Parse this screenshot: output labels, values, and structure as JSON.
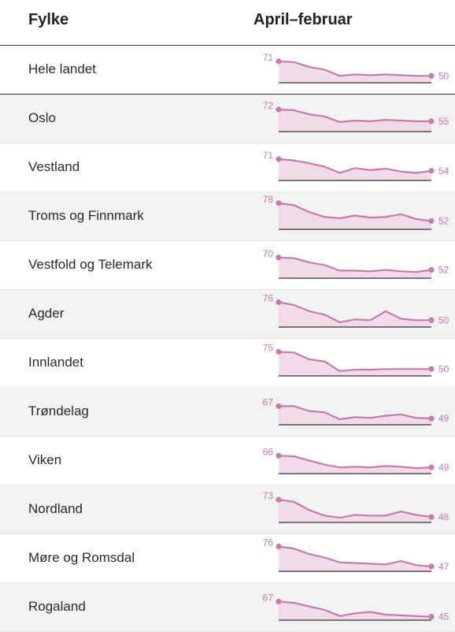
{
  "header": {
    "col1": "Fylke",
    "col2": "April–februar"
  },
  "colors": {
    "line": "#c77aac",
    "fill": "#f1dbe8",
    "baseline": "#333333"
  },
  "chart_data": {
    "type": "table",
    "columns": [
      "Fylke",
      "April–februar"
    ],
    "points_per_row": 11,
    "rows": [
      {
        "label": "Hele landet",
        "start": "71",
        "end": "50",
        "values": [
          71,
          70,
          63,
          59,
          50,
          52,
          51,
          52,
          51,
          50,
          50
        ]
      },
      {
        "label": "Oslo",
        "start": "72",
        "end": "55",
        "values": [
          72,
          71,
          65,
          62,
          54,
          56,
          55,
          57,
          56,
          55,
          55
        ]
      },
      {
        "label": "Vestland",
        "start": "71",
        "end": "54",
        "values": [
          71,
          69,
          65,
          60,
          51,
          58,
          55,
          57,
          53,
          51,
          54
        ]
      },
      {
        "label": "Troms og Finnmark",
        "start": "78",
        "end": "52",
        "values": [
          78,
          75,
          65,
          58,
          56,
          60,
          57,
          58,
          62,
          55,
          52
        ]
      },
      {
        "label": "Vestfold og Telemark",
        "start": "70",
        "end": "52",
        "values": [
          70,
          69,
          63,
          59,
          51,
          51,
          50,
          52,
          50,
          49,
          52
        ]
      },
      {
        "label": "Agder",
        "start": "76",
        "end": "50",
        "values": [
          76,
          72,
          63,
          58,
          47,
          51,
          50,
          63,
          52,
          50,
          50
        ]
      },
      {
        "label": "Innlandet",
        "start": "75",
        "end": "50",
        "values": [
          75,
          74,
          64,
          61,
          47,
          49,
          49,
          50,
          50,
          50,
          50
        ]
      },
      {
        "label": "Trøndelag",
        "start": "67",
        "end": "49",
        "values": [
          67,
          67,
          60,
          58,
          48,
          51,
          50,
          53,
          55,
          50,
          49
        ]
      },
      {
        "label": "Viken",
        "start": "66",
        "end": "49",
        "values": [
          66,
          65,
          59,
          53,
          49,
          50,
          49,
          51,
          50,
          48,
          49
        ]
      },
      {
        "label": "Nordland",
        "start": "73",
        "end": "48",
        "values": [
          73,
          70,
          58,
          50,
          47,
          51,
          50,
          50,
          56,
          51,
          48
        ]
      },
      {
        "label": "Møre og Romsdal",
        "start": "76",
        "end": "47",
        "values": [
          76,
          73,
          65,
          60,
          53,
          52,
          51,
          50,
          55,
          49,
          47
        ]
      },
      {
        "label": "Rogaland",
        "start": "67",
        "end": "45",
        "values": [
          67,
          65,
          60,
          55,
          46,
          50,
          52,
          48,
          47,
          46,
          45
        ]
      }
    ]
  }
}
